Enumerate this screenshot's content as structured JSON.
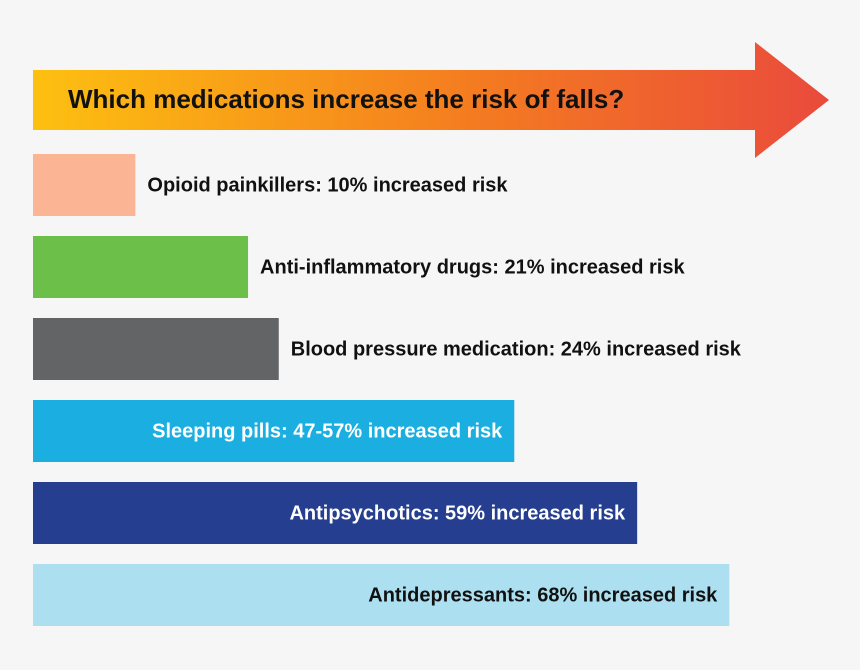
{
  "chart_data": {
    "type": "bar",
    "orientation": "horizontal",
    "title": "Which medications increase the risk of falls?",
    "values": [
      10,
      21,
      24,
      47,
      59,
      68
    ],
    "value_labels": [
      "Opioid painkillers: 10% increased risk",
      "Anti-inflammatory drugs: 21% increased risk",
      "Blood pressure medication: 24% increased risk",
      "Sleeping pills: 47-57% increased risk",
      "Antipsychotics: 59% increased risk",
      "Antidepressants: 68% increased risk"
    ],
    "colors": [
      "#fbb594",
      "#6cc04a",
      "#636466",
      "#1aafe0",
      "#253e8f",
      "#acdff0"
    ]
  }
}
